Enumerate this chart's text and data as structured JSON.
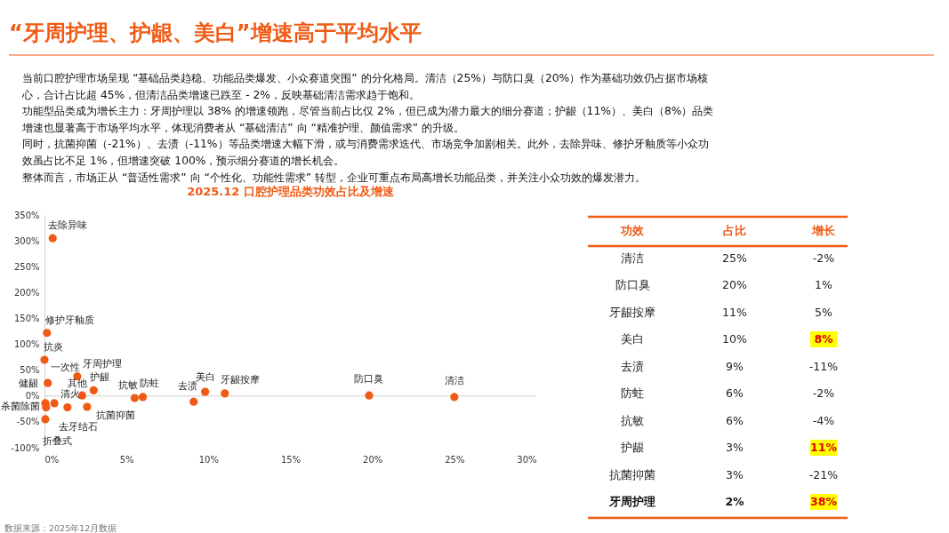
{
  "chart_data": [
    {
      "type": "other",
      "title": "“牙周护理、护龈、美白”增速高于平均水平",
      "annotations": [
        "当前口腔护理市场呈现 “基础品类趋稳、功能品类爆发、小众赛道突围” 的分化格局。清洁（25%）与防口臭（20%）作为基础功效仍占据市场核",
        "心，合计占比超 45%，但清洁品类增速已跌至 - 2%，反映基础清洁需求趋于饱和。",
        "功能型品类成为增长主力：牙周护理以 38% 的增速领跑，尽管当前占比仅 2%，但已成为潜力最大的细分赛道；护龈（11%）、美白（8%）品类",
        "增速也显著高于市场平均水平，体现消费者从 “基础清洁” 向 “精准护理、颜值需求” 的升级。",
        "同时，抗菌抑菌（-21%）、去渍（-11%）等品类增速大幅下滑，或与消费需求迭代、市场竞争加剧相关。此外，去除异味、修护牙釉质等小众功",
        "效虽占比不足 1%，但增速突破 100%，预示细分赛道的增长机会。",
        "整体而言，市场正从 “普适性需求” 向 “个性化、功能性需求” 转型，企业可重点布局高增长功能品类，并关注小众功效的爆发潜力。"
      ]
    },
    {
      "type": "scatter",
      "title": "2025.12 口腔护理品类功效占比及增速",
      "series": [
        {
          "color": "#f05a14",
          "x": [
            0.5,
            0.15,
            0,
            0.2,
            0.6,
            0.05,
            1.4,
            0.1,
            0.05,
            2,
            2.3,
            3,
            2.6,
            5.5,
            6,
            9.1,
            9.8,
            11,
            19.8,
            25
          ],
          "values": [
            305,
            122,
            70,
            25,
            -14,
            -14,
            -22,
            -22,
            -45,
            38,
            1,
            11,
            -21,
            -4,
            -2,
            -11,
            8,
            5,
            1,
            -2
          ]
        }
      ],
      "xlim": [
        0,
        30
      ],
      "xticks": [
        {
          "value": 0,
          "label": "0%"
        },
        {
          "value": 5,
          "label": "5%"
        },
        {
          "value": 10,
          "label": "10%"
        },
        {
          "value": 15,
          "label": "15%"
        },
        {
          "value": 20,
          "label": "20%"
        },
        {
          "value": 25,
          "label": "25%"
        },
        {
          "value": 30,
          "label": "30%"
        }
      ],
      "ylim": [
        -100,
        350
      ],
      "yticks": [
        {
          "value": -100,
          "label": "-100%"
        },
        {
          "value": -50,
          "label": "-50%"
        },
        {
          "value": 0,
          "label": "0%"
        },
        {
          "value": 50,
          "label": "50%"
        },
        {
          "value": 100,
          "label": "100%"
        },
        {
          "value": 150,
          "label": "150%"
        },
        {
          "value": 200,
          "label": "200%"
        },
        {
          "value": 250,
          "label": "250%"
        },
        {
          "value": 300,
          "label": "300%"
        },
        {
          "value": 350,
          "label": "350%"
        }
      ],
      "ref_lines": [
        {
          "axis": "y",
          "value": 0,
          "color": "#d0d0d0"
        }
      ],
      "marker": "circle",
      "grid": false,
      "annotations": [
        {
          "text": "去除异味",
          "x": 0.5,
          "y": 305
        },
        {
          "text": "修护牙釉质",
          "x": 0.15,
          "y": 122
        },
        {
          "text": "抗炎",
          "x": 0,
          "y": 70
        },
        {
          "text": "一次性",
          "x": 0.2,
          "y": 25
        },
        {
          "text": "健龈",
          "x": 0.6,
          "y": -14
        },
        {
          "text": "杀菌除菌",
          "x": 0.05,
          "y": -14
        },
        {
          "text": "清火",
          "x": 1.4,
          "y": -22
        },
        {
          "text": "去牙结石",
          "x": 0.1,
          "y": -22
        },
        {
          "text": "折叠式",
          "x": 0.05,
          "y": -45
        },
        {
          "text": "牙周护理",
          "x": 2,
          "y": 38
        },
        {
          "text": "其他",
          "x": 2.3,
          "y": 1
        },
        {
          "text": "护龈",
          "x": 3,
          "y": 11
        },
        {
          "text": "抗菌抑菌",
          "x": 2.6,
          "y": -21
        },
        {
          "text": "抗敏",
          "x": 5.5,
          "y": -4
        },
        {
          "text": "防蛀",
          "x": 6,
          "y": -2
        },
        {
          "text": "去渍",
          "x": 9.1,
          "y": -11
        },
        {
          "text": "美白",
          "x": 9.8,
          "y": 8
        },
        {
          "text": "牙龈按摩",
          "x": 11,
          "y": 5
        },
        {
          "text": "防口臭",
          "x": 19.8,
          "y": 1
        },
        {
          "text": "清洁",
          "x": 25,
          "y": -2
        },
        "数据来源：2025年12月数据"
      ]
    },
    {
      "type": "other",
      "annotations": [
        "功效",
        "占比",
        "增长",
        "清洁",
        "25%",
        "-2%",
        "防口臭",
        "20%",
        "1%",
        "牙龈按摩",
        "11%",
        "5%",
        "美白",
        "10%",
        "8%",
        "去渍",
        "9%",
        "-11%",
        "防蛀",
        "6%",
        "-2%",
        "抗敏",
        "6%",
        "-4%",
        "护龈",
        "3%",
        "11%",
        "抗菌抑菌",
        "3%",
        "-21%",
        "牙周护理",
        "2%",
        "38%"
      ]
    }
  ]
}
